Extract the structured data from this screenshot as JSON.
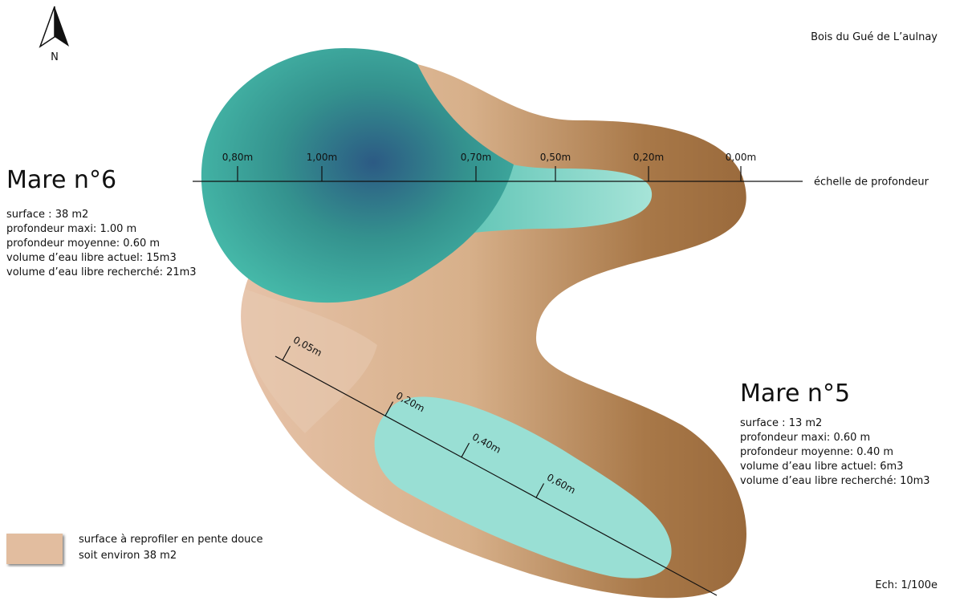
{
  "north": "N",
  "site_name": "Bois du Gué de L’aulnay",
  "scale": "Ech: 1/100e",
  "depth_scale_label": "échelle de profondeur",
  "pond6": {
    "title": "Mare n°6",
    "details": [
      "surface : 38 m2",
      "profondeur maxi: 1.00 m",
      "profondeur moyenne: 0.60 m",
      "volume d’eau libre actuel: 15m3",
      "volume d’eau libre recherché: 21m3"
    ],
    "depth_ticks": [
      "0,80m",
      "1,00m",
      "0,70m",
      "0,50m",
      "0,20m",
      "0,00m"
    ]
  },
  "pond5": {
    "title": "Mare n°5",
    "details": [
      "surface : 13 m2",
      "profondeur maxi: 0.60 m",
      "profondeur moyenne: 0.40 m",
      "volume d’eau libre actuel: 6m3",
      "volume d’eau libre recherché: 10m3"
    ],
    "depth_ticks": [
      "0,05m",
      "0,20m",
      "0,40m",
      "0,60m"
    ]
  },
  "legend": [
    "surface à reprofiler en pente douce",
    "soit environ 38 m2"
  ]
}
